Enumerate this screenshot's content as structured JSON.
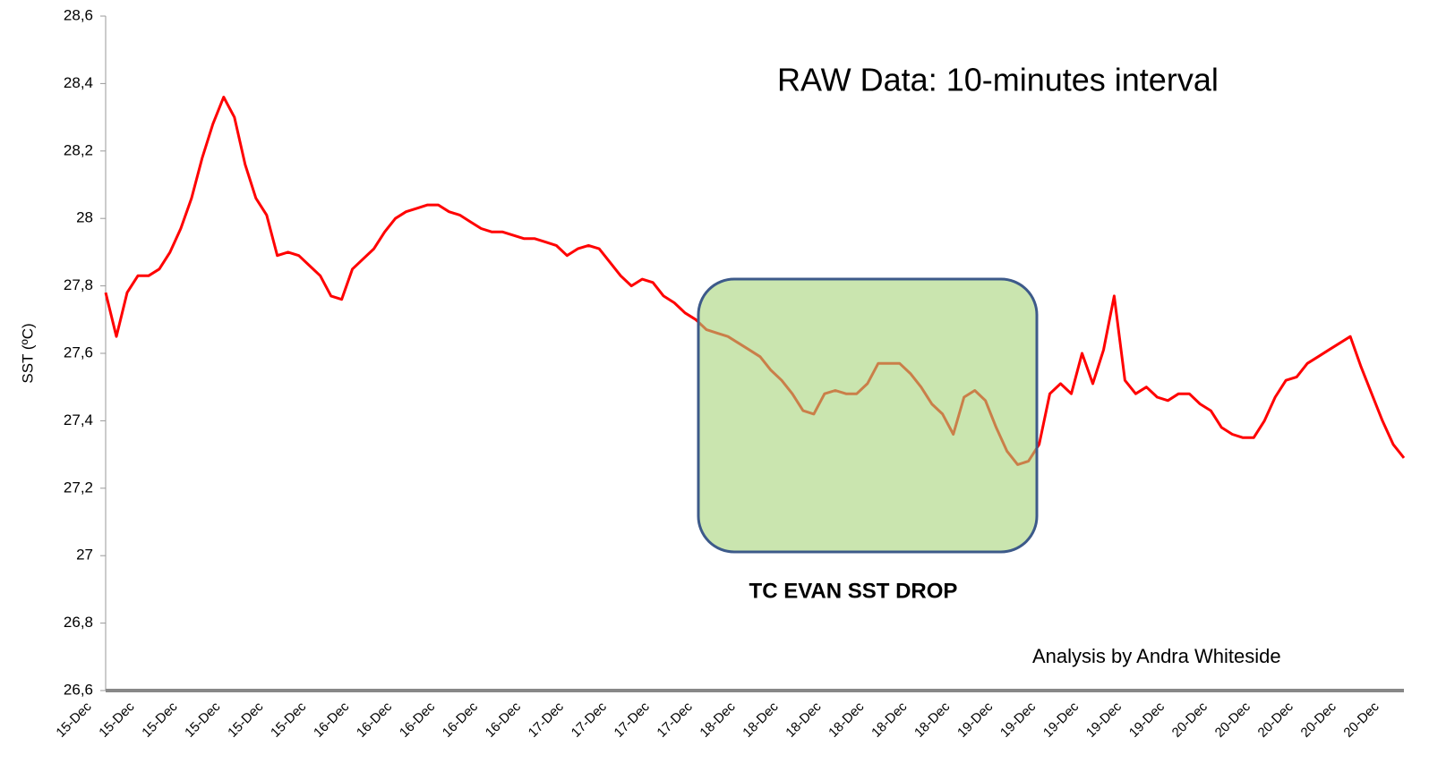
{
  "chart_data": {
    "type": "line",
    "y_label": "SST (ºC)",
    "annotations": [
      "RAW Data: 10-minutes interval",
      "TC EVAN SST DROP",
      "Analysis by Andra Whiteside"
    ],
    "categories": [
      "15-Dec",
      null,
      null,
      null,
      "15-Dec",
      null,
      null,
      null,
      "15-Dec",
      null,
      null,
      null,
      "15-Dec",
      null,
      null,
      null,
      "15-Dec",
      null,
      null,
      null,
      "15-Dec",
      null,
      null,
      null,
      "16-Dec",
      null,
      null,
      null,
      "16-Dec",
      null,
      null,
      null,
      "16-Dec",
      null,
      null,
      null,
      "16-Dec",
      null,
      null,
      null,
      "16-Dec",
      null,
      null,
      null,
      "17-Dec",
      null,
      null,
      null,
      "17-Dec",
      null,
      null,
      null,
      "17-Dec",
      null,
      null,
      null,
      "17-Dec",
      null,
      null,
      null,
      "18-Dec",
      null,
      null,
      null,
      "18-Dec",
      null,
      null,
      null,
      "18-Dec",
      null,
      null,
      null,
      "18-Dec",
      null,
      null,
      null,
      "18-Dec",
      null,
      null,
      null,
      "18-Dec",
      null,
      null,
      null,
      "19-Dec",
      null,
      null,
      null,
      "19-Dec",
      null,
      null,
      null,
      "19-Dec",
      null,
      null,
      null,
      "19-Dec",
      null,
      null,
      null,
      "19-Dec",
      null,
      null,
      null,
      "20-Dec",
      null,
      null,
      null,
      "20-Dec",
      null,
      null,
      null,
      "20-Dec",
      null,
      null,
      null,
      "20-Dec",
      null,
      null,
      null,
      "20-Dec",
      null
    ],
    "series": [
      {
        "name": "SST",
        "color": "#ff0000",
        "values": [
          27.78,
          27.65,
          27.78,
          27.83,
          27.83,
          27.85,
          27.9,
          27.97,
          28.06,
          28.18,
          28.28,
          28.36,
          28.3,
          28.16,
          28.06,
          28.01,
          27.89,
          27.9,
          27.89,
          27.86,
          27.83,
          27.77,
          27.76,
          27.85,
          27.88,
          27.91,
          27.96,
          28.0,
          28.02,
          28.03,
          28.04,
          28.04,
          28.02,
          28.01,
          27.99,
          27.97,
          27.96,
          27.96,
          27.95,
          27.94,
          27.94,
          27.93,
          27.92,
          27.89,
          27.91,
          27.92,
          27.91,
          27.87,
          27.83,
          27.8,
          27.82,
          27.81,
          27.77,
          27.75,
          27.72,
          27.7,
          27.67,
          27.66,
          27.65,
          27.63,
          27.61,
          27.59,
          27.55,
          27.52,
          27.48,
          27.43,
          27.42,
          27.48,
          27.49,
          27.48,
          27.48,
          27.51,
          27.57,
          27.57,
          27.57,
          27.54,
          27.5,
          27.45,
          27.42,
          27.36,
          27.47,
          27.49,
          27.46,
          27.38,
          27.31,
          27.27,
          27.28,
          27.33,
          27.48,
          27.51,
          27.48,
          27.6,
          27.51,
          27.61,
          27.77,
          27.52,
          27.48,
          27.5,
          27.47,
          27.46,
          27.48,
          27.48,
          27.45,
          27.43,
          27.38,
          27.36,
          27.35,
          27.35,
          27.4,
          27.47,
          27.52,
          27.53,
          27.57,
          27.59,
          27.61,
          27.63,
          27.65,
          27.56,
          27.48,
          27.4,
          27.33,
          27.29
        ]
      }
    ],
    "ylim": [
      26.6,
      28.6
    ],
    "yticks": [
      {
        "value": 26.6,
        "label": "26,6"
      },
      {
        "value": 26.8,
        "label": "26,8"
      },
      27,
      {
        "value": 27.2,
        "label": "27,2"
      },
      {
        "value": 27.4,
        "label": "27,4"
      },
      {
        "value": 27.6,
        "label": "27,6"
      },
      {
        "value": 27.8,
        "label": "27,8"
      },
      28,
      {
        "value": 28.2,
        "label": "28,2"
      },
      {
        "value": 28.4,
        "label": "28,4"
      },
      {
        "value": 28.6,
        "label": "28,6"
      }
    ],
    "grid": false
  }
}
